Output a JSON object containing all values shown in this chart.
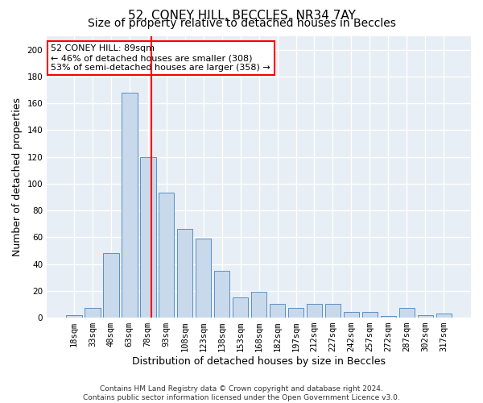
{
  "title_line1": "52, CONEY HILL, BECCLES, NR34 7AY",
  "title_line2": "Size of property relative to detached houses in Beccles",
  "xlabel": "Distribution of detached houses by size in Beccles",
  "ylabel": "Number of detached properties",
  "footnote1": "Contains HM Land Registry data © Crown copyright and database right 2024.",
  "footnote2": "Contains public sector information licensed under the Open Government Licence v3.0.",
  "annotation_line1": "52 CONEY HILL: 89sqm",
  "annotation_line2": "← 46% of detached houses are smaller (308)",
  "annotation_line3": "53% of semi-detached houses are larger (358) →",
  "categories": [
    "18sqm",
    "33sqm",
    "48sqm",
    "63sqm",
    "78sqm",
    "93sqm",
    "108sqm",
    "123sqm",
    "138sqm",
    "153sqm",
    "168sqm",
    "182sqm",
    "197sqm",
    "212sqm",
    "227sqm",
    "242sqm",
    "257sqm",
    "272sqm",
    "287sqm",
    "302sqm",
    "317sqm"
  ],
  "bar_values": [
    2,
    7,
    48,
    168,
    120,
    93,
    66,
    59,
    35,
    15,
    19,
    10,
    7,
    10,
    10,
    4,
    4,
    1,
    7,
    2,
    3
  ],
  "bar_color": "#c9d9ec",
  "bar_edge_color": "#5a8fc3",
  "vline_color": "red",
  "background_color": "#e8eef5",
  "grid_color": "white",
  "ylim": [
    0,
    210
  ],
  "yticks": [
    0,
    20,
    40,
    60,
    80,
    100,
    120,
    140,
    160,
    180,
    200
  ],
  "annotation_box_color": "red",
  "annotation_box_fill": "white",
  "title_fontsize": 11,
  "subtitle_fontsize": 10,
  "axis_label_fontsize": 9,
  "tick_fontsize": 7.5,
  "footnote_fontsize": 6.5
}
